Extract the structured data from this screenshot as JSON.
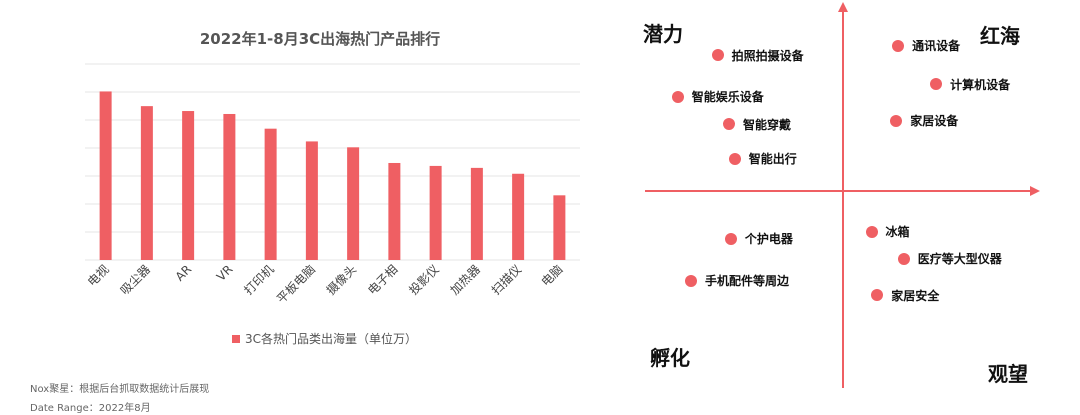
{
  "chart_data": [
    {
      "type": "bar",
      "title": "2022年1-8月3C出海热门产品排行",
      "categories": [
        "电视",
        "吸尘器",
        "AR",
        "VR",
        "打印机",
        "平板电脑",
        "摄像头",
        "电子相",
        "投影仪",
        "加热器",
        "扫描仪",
        "电脑"
      ],
      "series": [
        {
          "name": "3C各热门品类出海量（单位万）",
          "values": [
            172,
            157,
            152,
            149,
            134,
            121,
            115,
            99,
            96,
            94,
            88,
            66
          ]
        }
      ],
      "ylim": [
        0,
        200
      ],
      "grid": true,
      "legend_position": "bottom",
      "colors": {
        "bar": "#ef5f63",
        "grid": "#e6e6e6"
      }
    },
    {
      "type": "scatter",
      "quadrants": {
        "top_left": "潜力",
        "top_right": "红海",
        "bottom_left": "孵化",
        "bottom_right": "观望"
      },
      "points": [
        {
          "label": "拍照拍摄设备",
          "x": -0.66,
          "y": 0.75
        },
        {
          "label": "智能娱乐设备",
          "x": -0.87,
          "y": 0.52
        },
        {
          "label": "智能穿戴",
          "x": -0.6,
          "y": 0.37
        },
        {
          "label": "智能出行",
          "x": -0.57,
          "y": 0.18
        },
        {
          "label": "通讯设备",
          "x": 0.29,
          "y": 0.8
        },
        {
          "label": "计算机设备",
          "x": 0.49,
          "y": 0.59
        },
        {
          "label": "家居设备",
          "x": 0.28,
          "y": 0.39
        },
        {
          "label": "个护电器",
          "x": -0.59,
          "y": -0.26
        },
        {
          "label": "手机配件等周边",
          "x": -0.8,
          "y": -0.49
        },
        {
          "label": "冰箱",
          "x": 0.15,
          "y": -0.22
        },
        {
          "label": "医疗等大型仪器",
          "x": 0.32,
          "y": -0.37
        },
        {
          "label": "家居安全",
          "x": 0.18,
          "y": -0.57
        }
      ],
      "colors": {
        "point": "#ef5f63",
        "axis": "#ef5f63"
      }
    }
  ],
  "footnotes": {
    "source": "Nox聚星：根据后台抓取数据统计后展现",
    "date_range": "Date Range：2022年8月"
  }
}
